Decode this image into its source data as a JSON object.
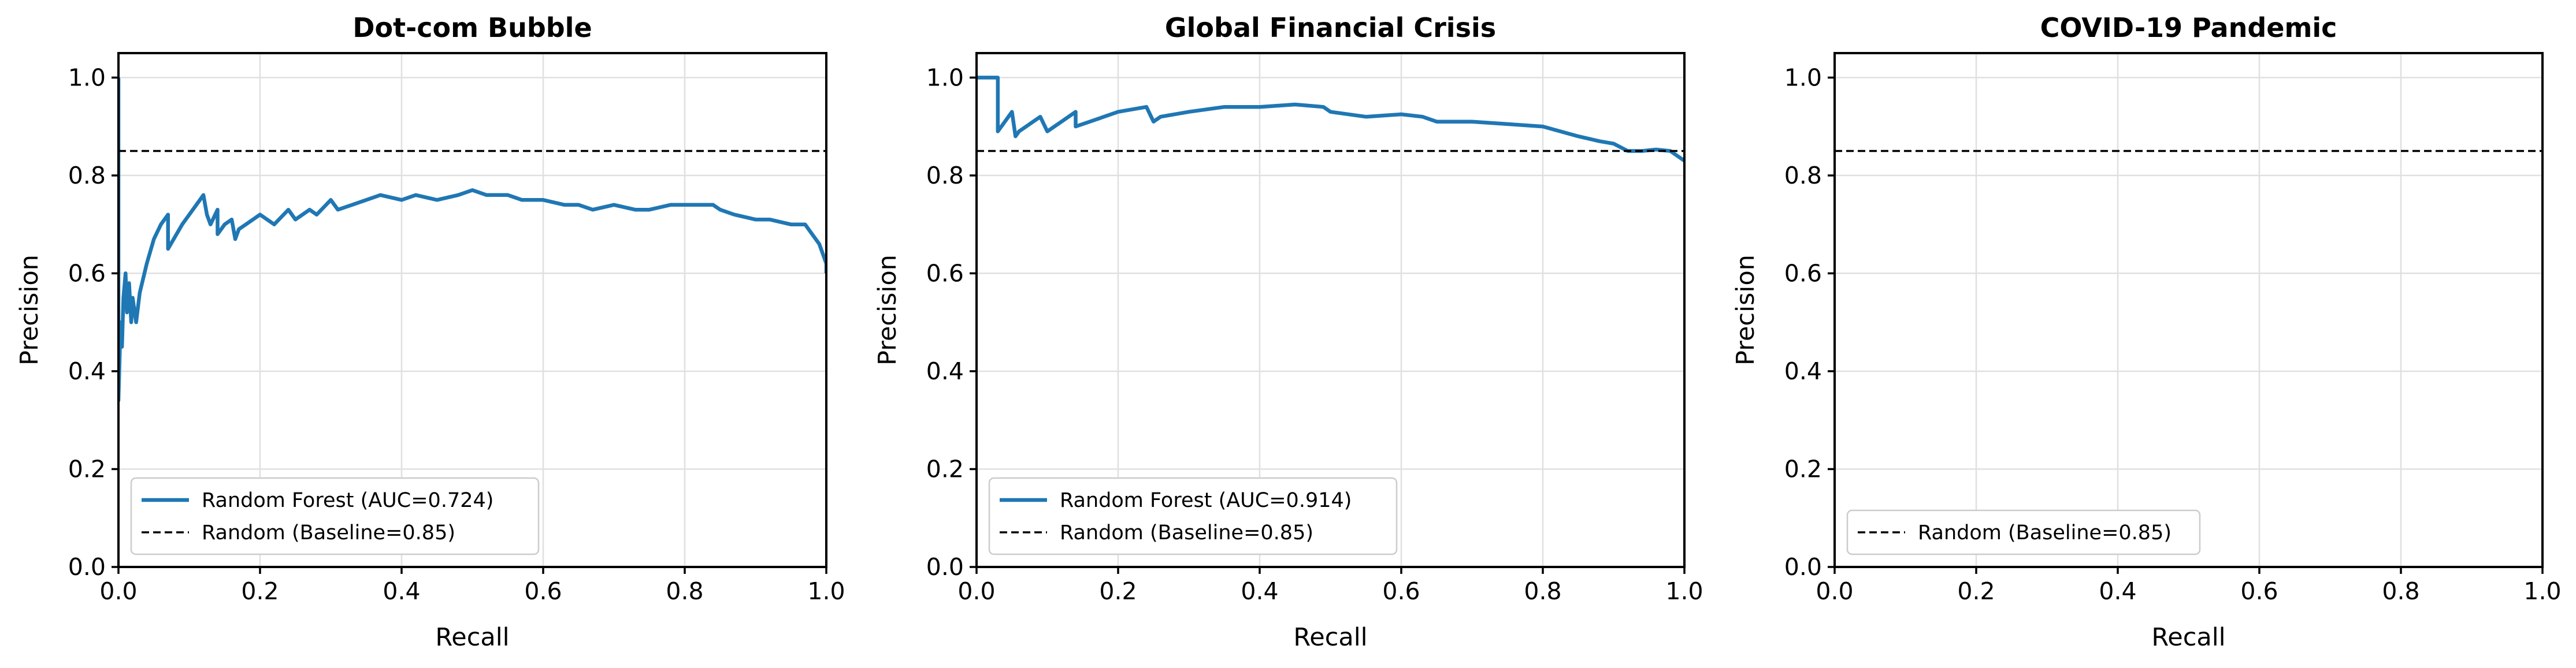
{
  "colors": {
    "series": "#1f77b4",
    "baseline": "#000000"
  },
  "chart_data": [
    {
      "type": "line",
      "title": "Dot-com Bubble",
      "xlabel": "Recall",
      "ylabel": "Precision",
      "xlim": [
        0,
        1
      ],
      "ylim": [
        0,
        1.05
      ],
      "xticks": [
        "0.0",
        "0.2",
        "0.4",
        "0.6",
        "0.8",
        "1.0"
      ],
      "yticks": [
        "0.0",
        "0.2",
        "0.4",
        "0.6",
        "0.8",
        "1.0"
      ],
      "grid": true,
      "legend_position": "lower-left",
      "series": [
        {
          "name": "Random Forest (AUC=0.724)",
          "style": "solid",
          "x": [
            0.0,
            0.0,
            0.003,
            0.005,
            0.007,
            0.01,
            0.012,
            0.015,
            0.018,
            0.02,
            0.025,
            0.03,
            0.04,
            0.05,
            0.06,
            0.07,
            0.07,
            0.09,
            0.11,
            0.12,
            0.125,
            0.13,
            0.14,
            0.14,
            0.15,
            0.16,
            0.165,
            0.17,
            0.18,
            0.2,
            0.22,
            0.24,
            0.25,
            0.27,
            0.28,
            0.3,
            0.31,
            0.33,
            0.35,
            0.37,
            0.4,
            0.42,
            0.45,
            0.48,
            0.5,
            0.52,
            0.55,
            0.57,
            0.6,
            0.63,
            0.65,
            0.67,
            0.7,
            0.73,
            0.75,
            0.78,
            0.8,
            0.82,
            0.84,
            0.85,
            0.87,
            0.9,
            0.92,
            0.95,
            0.97,
            0.98,
            0.99,
            0.995,
            1.0,
            1.0
          ],
          "y": [
            1.0,
            0.34,
            0.5,
            0.45,
            0.55,
            0.6,
            0.52,
            0.58,
            0.5,
            0.55,
            0.5,
            0.56,
            0.62,
            0.67,
            0.7,
            0.72,
            0.65,
            0.7,
            0.74,
            0.76,
            0.72,
            0.7,
            0.73,
            0.68,
            0.7,
            0.71,
            0.67,
            0.69,
            0.7,
            0.72,
            0.7,
            0.73,
            0.71,
            0.73,
            0.72,
            0.75,
            0.73,
            0.74,
            0.75,
            0.76,
            0.75,
            0.76,
            0.75,
            0.76,
            0.77,
            0.76,
            0.76,
            0.75,
            0.75,
            0.74,
            0.74,
            0.73,
            0.74,
            0.73,
            0.73,
            0.74,
            0.74,
            0.74,
            0.74,
            0.73,
            0.72,
            0.71,
            0.71,
            0.7,
            0.7,
            0.68,
            0.66,
            0.64,
            0.62,
            0.6
          ]
        },
        {
          "name": "Random (Baseline=0.85)",
          "style": "dashed",
          "x": [
            0,
            1
          ],
          "y": [
            0.85,
            0.85
          ]
        }
      ]
    },
    {
      "type": "line",
      "title": "Global Financial Crisis",
      "xlabel": "Recall",
      "ylabel": "Precision",
      "xlim": [
        0,
        1
      ],
      "ylim": [
        0,
        1.05
      ],
      "xticks": [
        "0.0",
        "0.2",
        "0.4",
        "0.6",
        "0.8",
        "1.0"
      ],
      "yticks": [
        "0.0",
        "0.2",
        "0.4",
        "0.6",
        "0.8",
        "1.0"
      ],
      "grid": true,
      "legend_position": "lower-left",
      "series": [
        {
          "name": "Random Forest (AUC=0.914)",
          "style": "solid",
          "x": [
            0.0,
            0.03,
            0.03,
            0.05,
            0.055,
            0.06,
            0.09,
            0.1,
            0.12,
            0.14,
            0.14,
            0.16,
            0.2,
            0.24,
            0.25,
            0.26,
            0.3,
            0.35,
            0.4,
            0.45,
            0.49,
            0.5,
            0.55,
            0.6,
            0.63,
            0.65,
            0.7,
            0.75,
            0.8,
            0.85,
            0.88,
            0.9,
            0.92,
            0.94,
            0.96,
            0.98,
            0.99,
            1.0
          ],
          "y": [
            1.0,
            1.0,
            0.89,
            0.93,
            0.88,
            0.89,
            0.92,
            0.89,
            0.91,
            0.93,
            0.9,
            0.91,
            0.93,
            0.94,
            0.91,
            0.92,
            0.93,
            0.94,
            0.94,
            0.945,
            0.94,
            0.93,
            0.92,
            0.925,
            0.92,
            0.91,
            0.91,
            0.905,
            0.9,
            0.88,
            0.87,
            0.865,
            0.85,
            0.85,
            0.853,
            0.85,
            0.84,
            0.83
          ]
        },
        {
          "name": "Random (Baseline=0.85)",
          "style": "dashed",
          "x": [
            0,
            1
          ],
          "y": [
            0.85,
            0.85
          ]
        }
      ]
    },
    {
      "type": "line",
      "title": "COVID-19 Pandemic",
      "xlabel": "Recall",
      "ylabel": "Precision",
      "xlim": [
        0,
        1
      ],
      "ylim": [
        0,
        1.05
      ],
      "xticks": [
        "0.0",
        "0.2",
        "0.4",
        "0.6",
        "0.8",
        "1.0"
      ],
      "yticks": [
        "0.0",
        "0.2",
        "0.4",
        "0.6",
        "0.8",
        "1.0"
      ],
      "grid": true,
      "legend_position": "lower-left",
      "series": [
        {
          "name": "Random (Baseline=0.85)",
          "style": "dashed",
          "x": [
            0,
            1
          ],
          "y": [
            0.85,
            0.85
          ]
        }
      ]
    }
  ]
}
